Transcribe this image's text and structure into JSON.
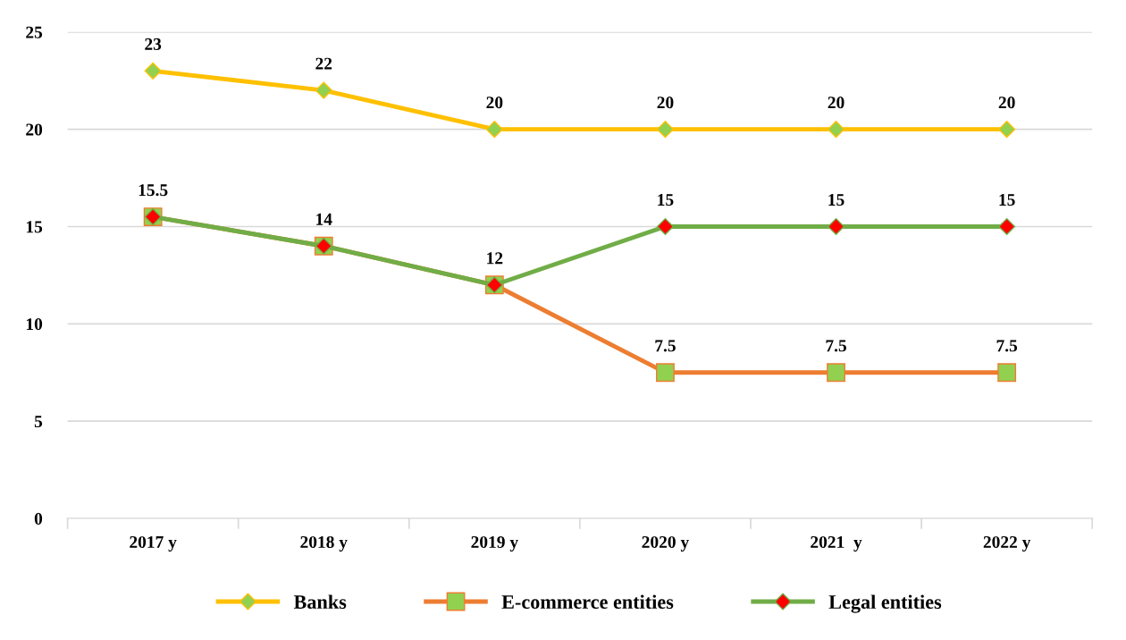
{
  "chart_data": {
    "type": "line",
    "categories": [
      "2017 y",
      "2018 y",
      "2019 y",
      "2020 y",
      "2021  y",
      "2022 y"
    ],
    "series": [
      {
        "name": "Banks",
        "color": "#ffc000",
        "marker": "diamond",
        "values": [
          23,
          22,
          20,
          20,
          20,
          20
        ],
        "value_labels": [
          "23",
          "22",
          "20",
          "20",
          "20",
          "20"
        ]
      },
      {
        "name": "E-commerce entities",
        "color": "#ed7d31",
        "marker": "square",
        "values": [
          15.5,
          14,
          12,
          7.5,
          7.5,
          7.5
        ],
        "value_labels": [
          null,
          null,
          null,
          "7.5",
          "7.5",
          "7.5"
        ]
      },
      {
        "name": "Legal entities",
        "color": "#70ad47",
        "marker": "diamond",
        "values": [
          15.5,
          14,
          12,
          15,
          15,
          15
        ],
        "value_labels": [
          "15.5",
          "14",
          "12",
          "15",
          "15",
          "15"
        ]
      }
    ],
    "ylim": [
      0,
      25
    ],
    "yticks": [
      0,
      5,
      10,
      15,
      20,
      25
    ],
    "grid": "y",
    "legend": "bottom",
    "line_style": "solid"
  }
}
